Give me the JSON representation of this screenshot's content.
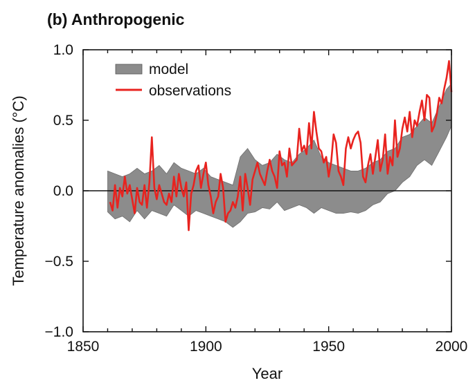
{
  "chart_data": {
    "type": "line",
    "title": "(b) Anthropogenic",
    "xlabel": "Year",
    "ylabel": "Temperature anomalies (°C)",
    "xlim": [
      1850,
      2000
    ],
    "ylim": [
      -1.0,
      1.0
    ],
    "xticks": [
      1850,
      1900,
      1950,
      2000
    ],
    "yticks": [
      1.0,
      0.5,
      0.0,
      -0.5,
      -1.0
    ],
    "ytick_labels": [
      "1.0",
      "0.5",
      "0.0",
      "−0.5",
      "−1.0"
    ],
    "reference_line_y": 0.0,
    "legend_position": "top-left",
    "series": [
      {
        "name": "model",
        "kind": "band",
        "color": "#8c8c8c",
        "x": [
          1860,
          1863,
          1866,
          1869,
          1872,
          1875,
          1878,
          1881,
          1884,
          1887,
          1890,
          1893,
          1896,
          1899,
          1902,
          1905,
          1908,
          1911,
          1914,
          1917,
          1920,
          1923,
          1926,
          1929,
          1932,
          1935,
          1938,
          1941,
          1944,
          1947,
          1950,
          1953,
          1956,
          1959,
          1962,
          1965,
          1968,
          1971,
          1974,
          1977,
          1980,
          1983,
          1986,
          1989,
          1992,
          1995,
          1998,
          2000
        ],
        "lower": [
          -0.15,
          -0.2,
          -0.18,
          -0.22,
          -0.14,
          -0.2,
          -0.14,
          -0.16,
          -0.18,
          -0.1,
          -0.14,
          -0.18,
          -0.14,
          -0.16,
          -0.18,
          -0.2,
          -0.22,
          -0.26,
          -0.22,
          -0.16,
          -0.15,
          -0.12,
          -0.13,
          -0.08,
          -0.14,
          -0.12,
          -0.1,
          -0.12,
          -0.16,
          -0.12,
          -0.14,
          -0.16,
          -0.16,
          -0.15,
          -0.16,
          -0.14,
          -0.1,
          -0.08,
          -0.02,
          0.0,
          0.06,
          0.1,
          0.18,
          0.22,
          0.18,
          0.28,
          0.38,
          0.46
        ],
        "upper": [
          0.14,
          0.12,
          0.1,
          0.12,
          0.16,
          0.12,
          0.14,
          0.18,
          0.12,
          0.2,
          0.16,
          0.14,
          0.12,
          0.16,
          0.1,
          0.08,
          0.06,
          0.04,
          0.24,
          0.3,
          0.22,
          0.18,
          0.2,
          0.26,
          0.22,
          0.2,
          0.26,
          0.3,
          0.36,
          0.24,
          0.2,
          0.18,
          0.16,
          0.14,
          0.14,
          0.16,
          0.2,
          0.22,
          0.28,
          0.3,
          0.38,
          0.4,
          0.46,
          0.52,
          0.48,
          0.6,
          0.72,
          0.76
        ]
      },
      {
        "name": "observations",
        "kind": "line",
        "color": "#e8231f",
        "x": [
          1861,
          1862,
          1863,
          1864,
          1865,
          1866,
          1867,
          1868,
          1869,
          1870,
          1871,
          1872,
          1873,
          1874,
          1875,
          1876,
          1877,
          1878,
          1879,
          1880,
          1881,
          1882,
          1883,
          1884,
          1885,
          1886,
          1887,
          1888,
          1889,
          1890,
          1891,
          1892,
          1893,
          1894,
          1895,
          1896,
          1897,
          1898,
          1899,
          1900,
          1901,
          1902,
          1903,
          1904,
          1905,
          1906,
          1907,
          1908,
          1909,
          1910,
          1911,
          1912,
          1913,
          1914,
          1915,
          1916,
          1917,
          1918,
          1919,
          1920,
          1921,
          1922,
          1923,
          1924,
          1925,
          1926,
          1927,
          1928,
          1929,
          1930,
          1931,
          1932,
          1933,
          1934,
          1935,
          1936,
          1937,
          1938,
          1939,
          1940,
          1941,
          1942,
          1943,
          1944,
          1945,
          1946,
          1947,
          1948,
          1949,
          1950,
          1951,
          1952,
          1953,
          1954,
          1955,
          1956,
          1957,
          1958,
          1959,
          1960,
          1961,
          1962,
          1963,
          1964,
          1965,
          1966,
          1967,
          1968,
          1969,
          1970,
          1971,
          1972,
          1973,
          1974,
          1975,
          1976,
          1977,
          1978,
          1979,
          1980,
          1981,
          1982,
          1983,
          1984,
          1985,
          1986,
          1987,
          1988,
          1989,
          1990,
          1991,
          1992,
          1993,
          1994,
          1995,
          1996,
          1997,
          1998,
          1999,
          2000
        ],
        "y": [
          -0.08,
          -0.14,
          0.04,
          -0.12,
          0.02,
          -0.04,
          0.1,
          -0.02,
          0.04,
          -0.06,
          -0.16,
          0.02,
          -0.08,
          -0.1,
          0.04,
          -0.12,
          0.06,
          0.38,
          0.02,
          -0.06,
          0.04,
          -0.02,
          -0.08,
          -0.1,
          -0.02,
          -0.08,
          0.1,
          -0.04,
          0.12,
          0.02,
          -0.04,
          0.06,
          -0.28,
          -0.02,
          0.04,
          0.14,
          0.18,
          0.02,
          0.12,
          0.2,
          0.04,
          -0.04,
          -0.16,
          -0.08,
          -0.04,
          0.12,
          0.02,
          -0.22,
          -0.16,
          -0.14,
          -0.08,
          -0.12,
          -0.04,
          0.1,
          -0.14,
          0.12,
          0.02,
          -0.1,
          0.08,
          0.14,
          0.2,
          0.12,
          0.08,
          0.04,
          0.14,
          0.22,
          0.14,
          0.1,
          0.02,
          0.28,
          0.18,
          0.2,
          0.1,
          0.3,
          0.18,
          0.2,
          0.22,
          0.44,
          0.28,
          0.32,
          0.26,
          0.48,
          0.3,
          0.56,
          0.42,
          0.3,
          0.28,
          0.2,
          0.24,
          0.1,
          0.2,
          0.4,
          0.34,
          0.14,
          0.1,
          0.04,
          0.3,
          0.38,
          0.3,
          0.36,
          0.4,
          0.42,
          0.34,
          0.1,
          0.06,
          0.18,
          0.26,
          0.12,
          0.24,
          0.36,
          0.14,
          0.22,
          0.4,
          0.12,
          0.24,
          0.18,
          0.5,
          0.24,
          0.3,
          0.44,
          0.52,
          0.42,
          0.56,
          0.38,
          0.5,
          0.46,
          0.56,
          0.64,
          0.5,
          0.68,
          0.66,
          0.42,
          0.46,
          0.54,
          0.66,
          0.62,
          0.72,
          0.8,
          0.92,
          0.7
        ]
      }
    ]
  }
}
